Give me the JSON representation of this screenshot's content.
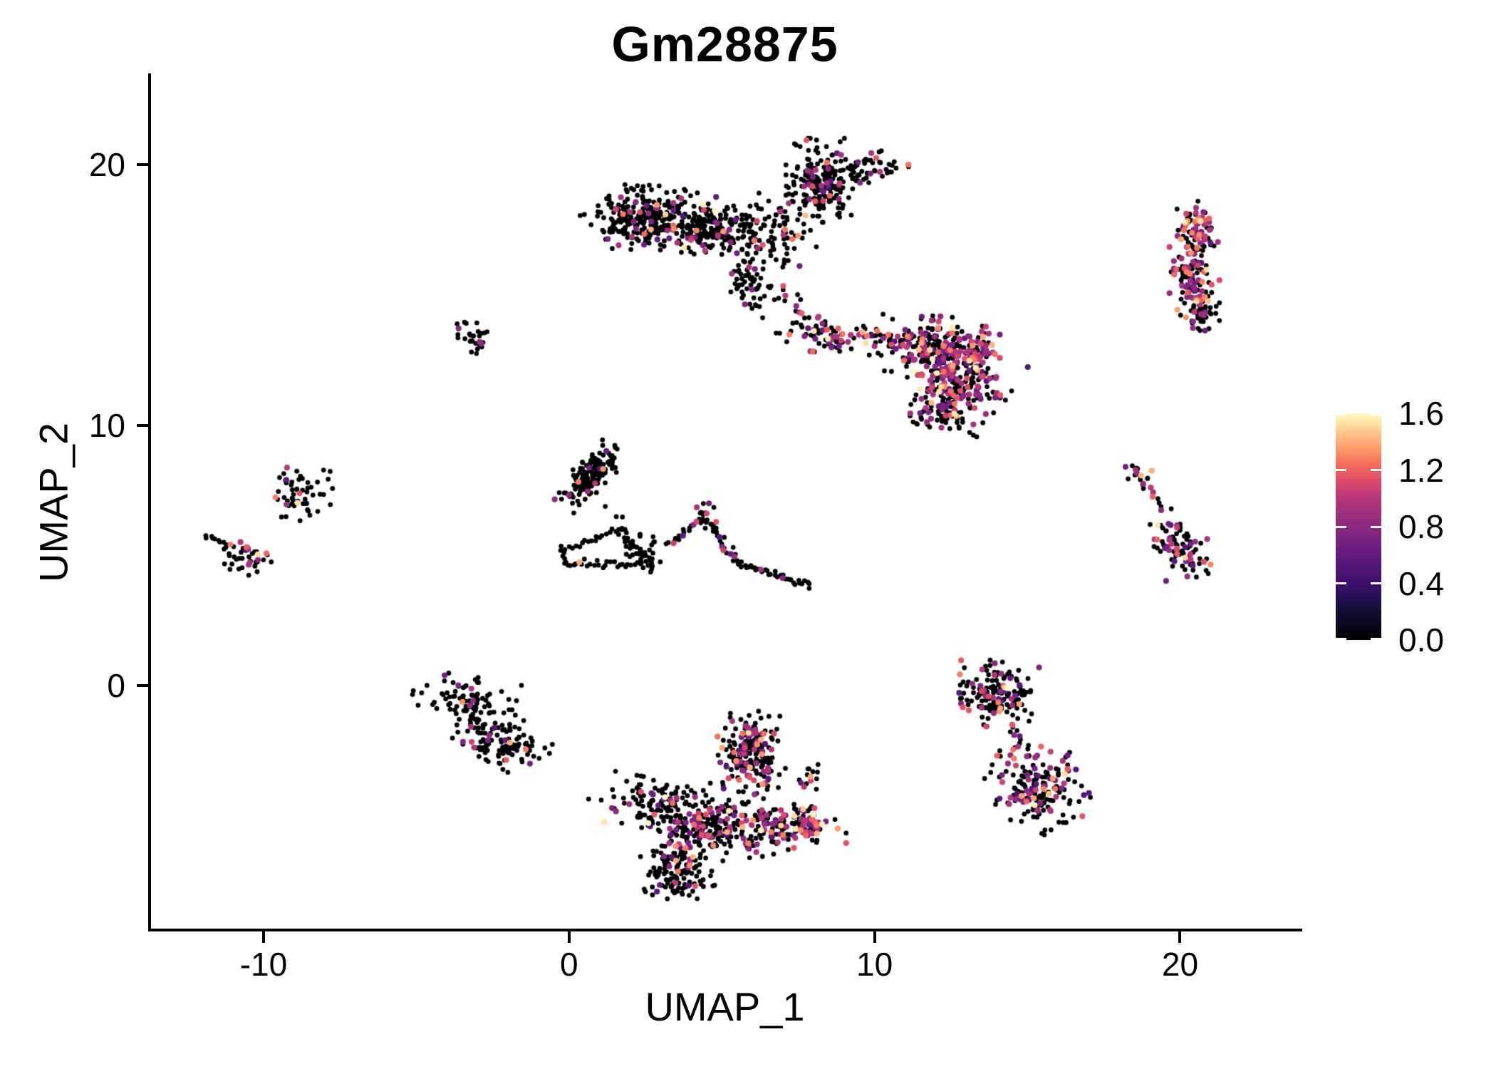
{
  "title": "Gm28875",
  "axes": {
    "x": {
      "label": "UMAP_1",
      "ticks": [
        -10,
        0,
        10,
        20
      ],
      "tick_labels": [
        "-10",
        "0",
        "10",
        "20"
      ]
    },
    "y": {
      "label": "UMAP_2",
      "ticks": [
        0,
        10,
        20
      ],
      "tick_labels": [
        "0",
        "10",
        "20"
      ]
    }
  },
  "legend": {
    "tick_labels": [
      "1.6",
      "1.2",
      "0.8",
      "0.4",
      "0.0"
    ],
    "tick_values": [
      1.6,
      1.2,
      0.8,
      0.4,
      0.0
    ],
    "vmax": 1.6,
    "colormap": [
      [
        0,
        "#000004"
      ],
      [
        0.13,
        "#140e36"
      ],
      [
        0.25,
        "#3b0f70"
      ],
      [
        0.38,
        "#641a80"
      ],
      [
        0.5,
        "#8c2981"
      ],
      [
        0.63,
        "#b73779"
      ],
      [
        0.7,
        "#de4968"
      ],
      [
        0.78,
        "#f7705c"
      ],
      [
        0.85,
        "#fe9f6d"
      ],
      [
        0.93,
        "#fecf92"
      ],
      [
        1,
        "#fcfdbf"
      ]
    ]
  },
  "chart_data": {
    "type": "scatter",
    "title": "Gm28875",
    "xlabel": "UMAP_1",
    "ylabel": "UMAP_2",
    "xlim": [
      -13.73,
      23.93
    ],
    "ylim": [
      -9.38,
      23.45
    ],
    "grid": false,
    "legend_position": "right",
    "color_scale": {
      "name": "magma",
      "domain": [
        0,
        1.6
      ],
      "zero_color": "#000004"
    },
    "point_style": {
      "r_base": 3.4,
      "r_expr": 4.1
    },
    "value_mix": [
      [
        0.5,
        0.68,
        0.14
      ],
      [
        0.68,
        1.02,
        0.56
      ],
      [
        1.05,
        1.3,
        0.21
      ],
      [
        1.3,
        1.45,
        0.06
      ],
      [
        1.5,
        1.6,
        0.03
      ]
    ],
    "clusters": [
      {
        "name": "top-arm-left",
        "cx": 2.55,
        "cy": 17.95,
        "sx": 0.95,
        "sy": 0.55,
        "rot": -5,
        "n": 270,
        "f": 0.13
      },
      {
        "name": "top-arm-right",
        "cx": 4.55,
        "cy": 17.55,
        "sx": 0.75,
        "sy": 0.45,
        "rot": -8,
        "n": 170,
        "f": 0.1
      },
      {
        "name": "top-tail",
        "cx": 5.85,
        "cy": 15.6,
        "sx": 0.3,
        "sy": 0.7,
        "rot": 12,
        "n": 60,
        "f": 0.1
      },
      {
        "name": "top-mid",
        "cx": 6.6,
        "cy": 17.5,
        "sx": 0.65,
        "sy": 0.75,
        "rot": 0,
        "n": 90,
        "f": 0.12
      },
      {
        "name": "top-knob",
        "cx": 8.25,
        "cy": 19.4,
        "sx": 0.5,
        "sy": 0.7,
        "rot": 0,
        "n": 190,
        "f": 0.15
      },
      {
        "name": "top-knob-ext",
        "cx": 9.85,
        "cy": 19.85,
        "sx": 0.55,
        "sy": 0.28,
        "rot": 5,
        "n": 55,
        "f": 0.18
      },
      {
        "name": "midright-arm",
        "cx": 8.4,
        "cy": 13.45,
        "sx": 0.7,
        "sy": 0.3,
        "rot": -10,
        "n": 70,
        "f": 0.33
      },
      {
        "name": "midright-main-upper",
        "cx": 11.85,
        "cy": 13.05,
        "sx": 0.8,
        "sy": 0.5,
        "rot": -5,
        "n": 210,
        "f": 0.4
      },
      {
        "name": "midright-main-lower",
        "cx": 12.85,
        "cy": 11.7,
        "sx": 0.7,
        "sy": 0.7,
        "rot": -30,
        "n": 230,
        "f": 0.42
      },
      {
        "name": "midright-hotspot",
        "cx": 13.6,
        "cy": 13.0,
        "sx": 0.25,
        "sy": 0.35,
        "rot": 0,
        "n": 25,
        "f": 0.8
      },
      {
        "name": "midright-tip",
        "cx": 12.2,
        "cy": 10.5,
        "sx": 0.45,
        "sy": 0.35,
        "rot": 0,
        "n": 60,
        "f": 0.3
      },
      {
        "name": "right-strip-top",
        "cx": 20.55,
        "cy": 17.45,
        "sx": 0.3,
        "sy": 0.5,
        "rot": 0,
        "n": 85,
        "f": 0.45
      },
      {
        "name": "right-strip-mid",
        "cx": 20.3,
        "cy": 15.95,
        "sx": 0.28,
        "sy": 0.45,
        "rot": 0,
        "n": 75,
        "f": 0.5
      },
      {
        "name": "right-strip-bottom",
        "cx": 20.6,
        "cy": 14.6,
        "sx": 0.3,
        "sy": 0.42,
        "rot": 0,
        "n": 70,
        "f": 0.5
      },
      {
        "name": "small-mid-left",
        "cx": -3.1,
        "cy": 13.4,
        "sx": 0.28,
        "sy": 0.32,
        "rot": 40,
        "n": 28,
        "f": 0.08
      },
      {
        "name": "center-left-blob",
        "cx": 0.68,
        "cy": 8.05,
        "sx": 0.62,
        "sy": 0.25,
        "rot": 50,
        "n": 135,
        "f": 0.1
      },
      {
        "name": "wishbone-inner",
        "cx": 2.25,
        "cy": 5.25,
        "sx": 0.32,
        "sy": 0.3,
        "rot": 0,
        "n": 22,
        "f": 0.0
      },
      {
        "name": "peak-apex",
        "cx": 4.45,
        "cy": 6.55,
        "sx": 0.18,
        "sy": 0.3,
        "rot": 0,
        "n": 12,
        "f": 0.2
      },
      {
        "name": "far-left-blob",
        "cx": -10.55,
        "cy": 4.9,
        "sx": 0.42,
        "sy": 0.26,
        "rot": -20,
        "n": 38,
        "f": 0.2
      },
      {
        "name": "far-left-upper",
        "cx": -8.8,
        "cy": 7.45,
        "sx": 0.46,
        "sy": 0.52,
        "rot": 0,
        "n": 55,
        "f": 0.15
      },
      {
        "name": "right-diag-knot",
        "cx": 18.75,
        "cy": 8.1,
        "sx": 0.22,
        "sy": 0.22,
        "rot": 0,
        "n": 10,
        "f": 0.5
      },
      {
        "name": "right-diag-blob",
        "cx": 19.95,
        "cy": 5.4,
        "sx": 0.42,
        "sy": 0.6,
        "rot": 15,
        "n": 85,
        "f": 0.35
      },
      {
        "name": "bottomleft-upper",
        "cx": -3.4,
        "cy": -0.5,
        "sx": 0.75,
        "sy": 0.38,
        "rot": -10,
        "n": 90,
        "f": 0.07
      },
      {
        "name": "bottomleft-lower",
        "cx": -2.2,
        "cy": -2.2,
        "sx": 0.7,
        "sy": 0.45,
        "rot": -15,
        "n": 110,
        "f": 0.08
      },
      {
        "name": "bottom-lobe-ne",
        "cx": 6.0,
        "cy": -2.7,
        "sx": 0.48,
        "sy": 0.75,
        "rot": 8,
        "n": 215,
        "f": 0.3
      },
      {
        "name": "bottom-appendix",
        "cx": 7.8,
        "cy": -3.6,
        "sx": 0.25,
        "sy": 0.25,
        "rot": 0,
        "n": 14,
        "f": 0.3
      },
      {
        "name": "bottom-arm-left",
        "cx": 2.95,
        "cy": -4.5,
        "sx": 1.0,
        "sy": 0.45,
        "rot": -10,
        "n": 125,
        "f": 0.15
      },
      {
        "name": "bottom-band",
        "cx": 5.0,
        "cy": -5.5,
        "sx": 1.05,
        "sy": 0.55,
        "rot": -5,
        "n": 195,
        "f": 0.28
      },
      {
        "name": "bottom-arm-right",
        "cx": 7.2,
        "cy": -5.3,
        "sx": 0.85,
        "sy": 0.33,
        "rot": -8,
        "n": 105,
        "f": 0.45
      },
      {
        "name": "bottom-arm-tip",
        "cx": 7.9,
        "cy": -5.2,
        "sx": 0.28,
        "sy": 0.25,
        "rot": 0,
        "n": 28,
        "f": 0.75
      },
      {
        "name": "bottom-lobe-s",
        "cx": 3.5,
        "cy": -7.1,
        "sx": 0.5,
        "sy": 0.58,
        "rot": 10,
        "n": 135,
        "f": 0.12
      },
      {
        "name": "bottomright-upper",
        "cx": 14.05,
        "cy": -0.35,
        "sx": 0.62,
        "sy": 0.55,
        "rot": -10,
        "n": 160,
        "f": 0.22
      },
      {
        "name": "bottomright-lower",
        "cx": 15.45,
        "cy": -3.85,
        "sx": 0.78,
        "sy": 0.72,
        "rot": -25,
        "n": 175,
        "f": 0.4
      }
    ],
    "chains": [
      {
        "name": "top-bridge",
        "x1": 6.9,
        "y1": 15.3,
        "x2": 8.6,
        "y2": 13.2,
        "n": 22,
        "jitter": 0.22,
        "f": 0.3
      },
      {
        "name": "midright-bridge",
        "x1": 9.4,
        "y1": 13.6,
        "x2": 10.6,
        "y2": 13.4,
        "n": 16,
        "jitter": 0.18,
        "f": 0.35
      },
      {
        "name": "wishbone-top",
        "x1": -0.2,
        "y1": 5.2,
        "x2": 1.7,
        "y2": 6.05,
        "n": 20,
        "jitter": 0.1,
        "f": 0.0
      },
      {
        "name": "wishbone-bottom",
        "x1": -0.15,
        "y1": 4.7,
        "x2": 2.6,
        "y2": 4.6,
        "n": 30,
        "jitter": 0.08,
        "f": 0.02
      },
      {
        "name": "wishbone-right",
        "x1": 1.7,
        "y1": 6.05,
        "x2": 2.8,
        "y2": 4.45,
        "n": 24,
        "jitter": 0.1,
        "f": 0.04
      },
      {
        "name": "wishbone-left",
        "x1": -0.2,
        "y1": 5.2,
        "x2": -0.15,
        "y2": 4.7,
        "n": 5,
        "jitter": 0.06,
        "f": 0.0
      },
      {
        "name": "peak-up",
        "x1": 3.2,
        "y1": 5.4,
        "x2": 4.4,
        "y2": 6.4,
        "n": 18,
        "jitter": 0.09,
        "f": 0.12
      },
      {
        "name": "peak-down",
        "x1": 4.5,
        "y1": 6.35,
        "x2": 5.55,
        "y2": 4.7,
        "n": 24,
        "jitter": 0.1,
        "f": 0.08
      },
      {
        "name": "peak-tail",
        "x1": 5.55,
        "y1": 4.7,
        "x2": 7.9,
        "y2": 3.85,
        "n": 36,
        "jitter": 0.07,
        "f": 0.03
      },
      {
        "name": "center-left-strays",
        "x1": 1.2,
        "y1": 6.9,
        "x2": 1.85,
        "y2": 6.45,
        "n": 3,
        "jitter": 0.1,
        "f": 0.0
      },
      {
        "name": "far-left-chain",
        "x1": -11.9,
        "y1": 5.8,
        "x2": -11.0,
        "y2": 5.3,
        "n": 12,
        "jitter": 0.06,
        "f": 0.2
      },
      {
        "name": "right-diag-chain",
        "x1": 18.35,
        "y1": 8.5,
        "x2": 19.6,
        "y2": 6.7,
        "n": 16,
        "jitter": 0.1,
        "f": 0.3
      },
      {
        "name": "bottomleft-neck",
        "x1": -3.2,
        "y1": -1.1,
        "x2": -2.8,
        "y2": -1.8,
        "n": 9,
        "jitter": 0.1,
        "f": 0.1
      },
      {
        "name": "bottomright-neck",
        "x1": 14.35,
        "y1": -1.55,
        "x2": 15.0,
        "y2": -2.45,
        "n": 11,
        "jitter": 0.12,
        "f": 0.4
      }
    ]
  }
}
